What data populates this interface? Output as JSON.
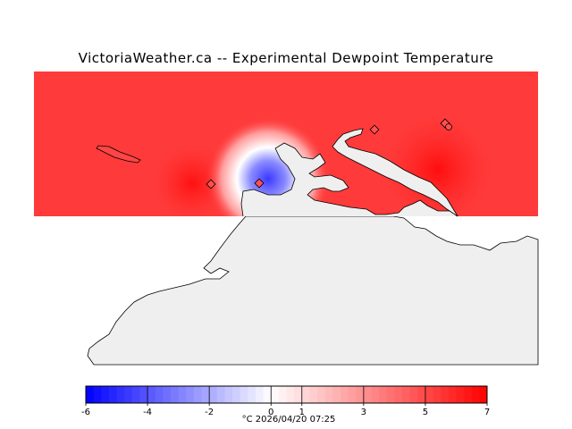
{
  "title": "VictoriaWeather.ca -- Experimental Dewpoint Temperature",
  "colorbar": {
    "min": -6,
    "max": 7,
    "tick_labels": [
      "-6",
      "-4",
      "-2",
      "0",
      "1",
      "3",
      "5",
      "7"
    ],
    "tick_values": [
      -6,
      -4,
      -2,
      0,
      1,
      3,
      5,
      7
    ],
    "cold_color": "#0000ff",
    "zero_color": "#ffffff",
    "warm_color": "#ff0000"
  },
  "caption": {
    "unit": "°C",
    "timestamp": "2026/04/20 07:25"
  },
  "map": {
    "land_color": "#efefef",
    "coastline_color": "#000000",
    "station_markers": [
      "station",
      "station",
      "station",
      "station",
      "station"
    ]
  }
}
